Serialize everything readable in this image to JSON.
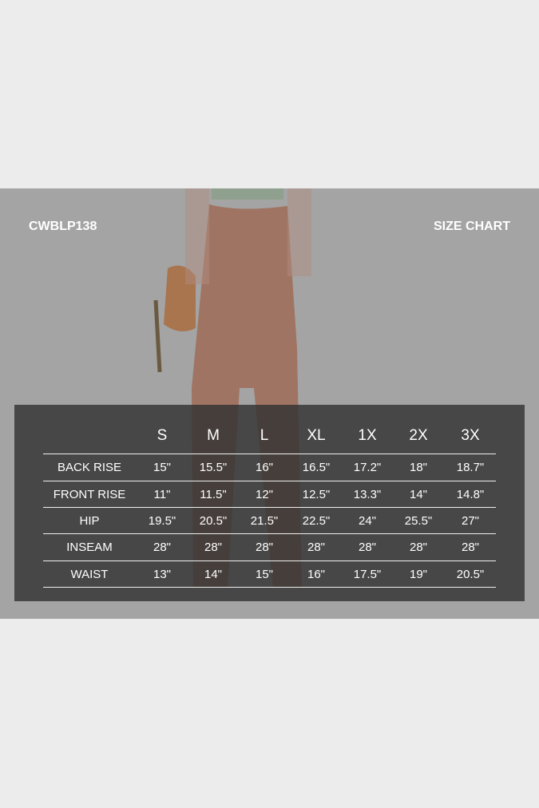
{
  "header": {
    "product_code": "CWBLP138",
    "title": "SIZE CHART"
  },
  "table": {
    "sizes": [
      "S",
      "M",
      "L",
      "XL",
      "1X",
      "2X",
      "3X"
    ],
    "rows": [
      {
        "label": "BACK RISE",
        "values": [
          "15\"",
          "15.5\"",
          "16\"",
          "16.5\"",
          "17.2\"",
          "18\"",
          "18.7\""
        ]
      },
      {
        "label": "FRONT RISE",
        "values": [
          "11\"",
          "11.5\"",
          "12\"",
          "12.5\"",
          "13.3\"",
          "14\"",
          "14.8\""
        ]
      },
      {
        "label": "HIP",
        "values": [
          "19.5\"",
          "20.5\"",
          "21.5\"",
          "22.5\"",
          "24\"",
          "25.5\"",
          "27\""
        ]
      },
      {
        "label": "INSEAM",
        "values": [
          "28\"",
          "28\"",
          "28\"",
          "28\"",
          "28\"",
          "28\"",
          "28\""
        ]
      },
      {
        "label": "WAIST",
        "values": [
          "13\"",
          "14\"",
          "15\"",
          "16\"",
          "17.5\"",
          "19\"",
          "20.5\""
        ]
      }
    ]
  },
  "colors": {
    "background": "#ececec",
    "photo_band": "#a4a4a4",
    "panel": "#474747",
    "pants": "#a07462"
  }
}
